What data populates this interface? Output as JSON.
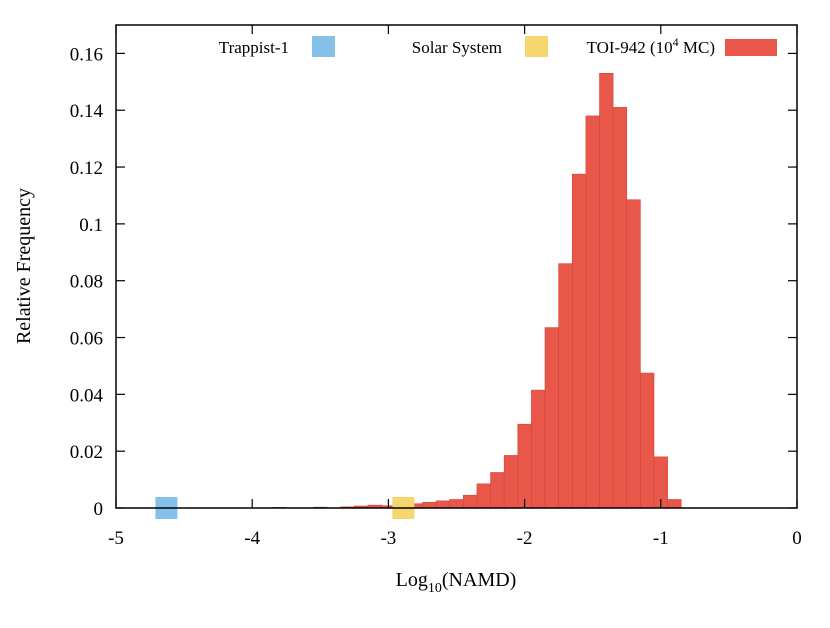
{
  "chart_data": {
    "type": "bar",
    "title": "",
    "xlabel": "Log",
    "xlabel_sub": "10",
    "xlabel_suffix": "(NAMD)",
    "ylabel": "Relative Frequency",
    "xlim": [
      -5,
      0
    ],
    "ylim": [
      0,
      0.17
    ],
    "xticks": [
      -5,
      -4,
      -3,
      -2,
      -1,
      0
    ],
    "xtick_labels": [
      "-5",
      "-4",
      "-3",
      "-2",
      "-1",
      "0"
    ],
    "yticks": [
      0,
      0.02,
      0.04,
      0.06,
      0.08,
      0.1,
      0.12,
      0.14,
      0.16
    ],
    "ytick_labels": [
      "0",
      "0.02",
      "0.04",
      "0.06",
      "0.08",
      "0.1",
      "0.12",
      "0.14",
      "0.16"
    ],
    "grid": false,
    "legend_position": "top",
    "series": [
      {
        "name": "TOI-942 (10",
        "name_sup": "4",
        "name_suffix": " MC)",
        "color": "#e8574a",
        "bin_width": 0.1,
        "bins": [
          {
            "x": -3.8,
            "y": 0.0002
          },
          {
            "x": -3.5,
            "y": 0.0003
          },
          {
            "x": -3.3,
            "y": 0.0004
          },
          {
            "x": -3.2,
            "y": 0.0007
          },
          {
            "x": -3.1,
            "y": 0.001
          },
          {
            "x": -3.0,
            "y": 0.0008
          },
          {
            "x": -2.9,
            "y": 0.001
          },
          {
            "x": -2.8,
            "y": 0.0015
          },
          {
            "x": -2.7,
            "y": 0.002
          },
          {
            "x": -2.6,
            "y": 0.0025
          },
          {
            "x": -2.5,
            "y": 0.003
          },
          {
            "x": -2.4,
            "y": 0.0045
          },
          {
            "x": -2.3,
            "y": 0.0085
          },
          {
            "x": -2.2,
            "y": 0.0125
          },
          {
            "x": -2.1,
            "y": 0.0185
          },
          {
            "x": -2.0,
            "y": 0.0295
          },
          {
            "x": -1.9,
            "y": 0.0415
          },
          {
            "x": -1.8,
            "y": 0.0635
          },
          {
            "x": -1.7,
            "y": 0.086
          },
          {
            "x": -1.6,
            "y": 0.1175
          },
          {
            "x": -1.5,
            "y": 0.138
          },
          {
            "x": -1.4,
            "y": 0.153
          },
          {
            "x": -1.3,
            "y": 0.141
          },
          {
            "x": -1.2,
            "y": 0.1085
          },
          {
            "x": -1.1,
            "y": 0.0475
          },
          {
            "x": -1.0,
            "y": 0.018
          },
          {
            "x": -0.9,
            "y": 0.003
          }
        ]
      }
    ],
    "markers": [
      {
        "name": "Trappist-1",
        "x": -4.63,
        "y": 0,
        "color": "#85c0e8"
      },
      {
        "name": "Solar System",
        "x": -2.89,
        "y": 0,
        "color": "#f5d76e"
      }
    ]
  }
}
